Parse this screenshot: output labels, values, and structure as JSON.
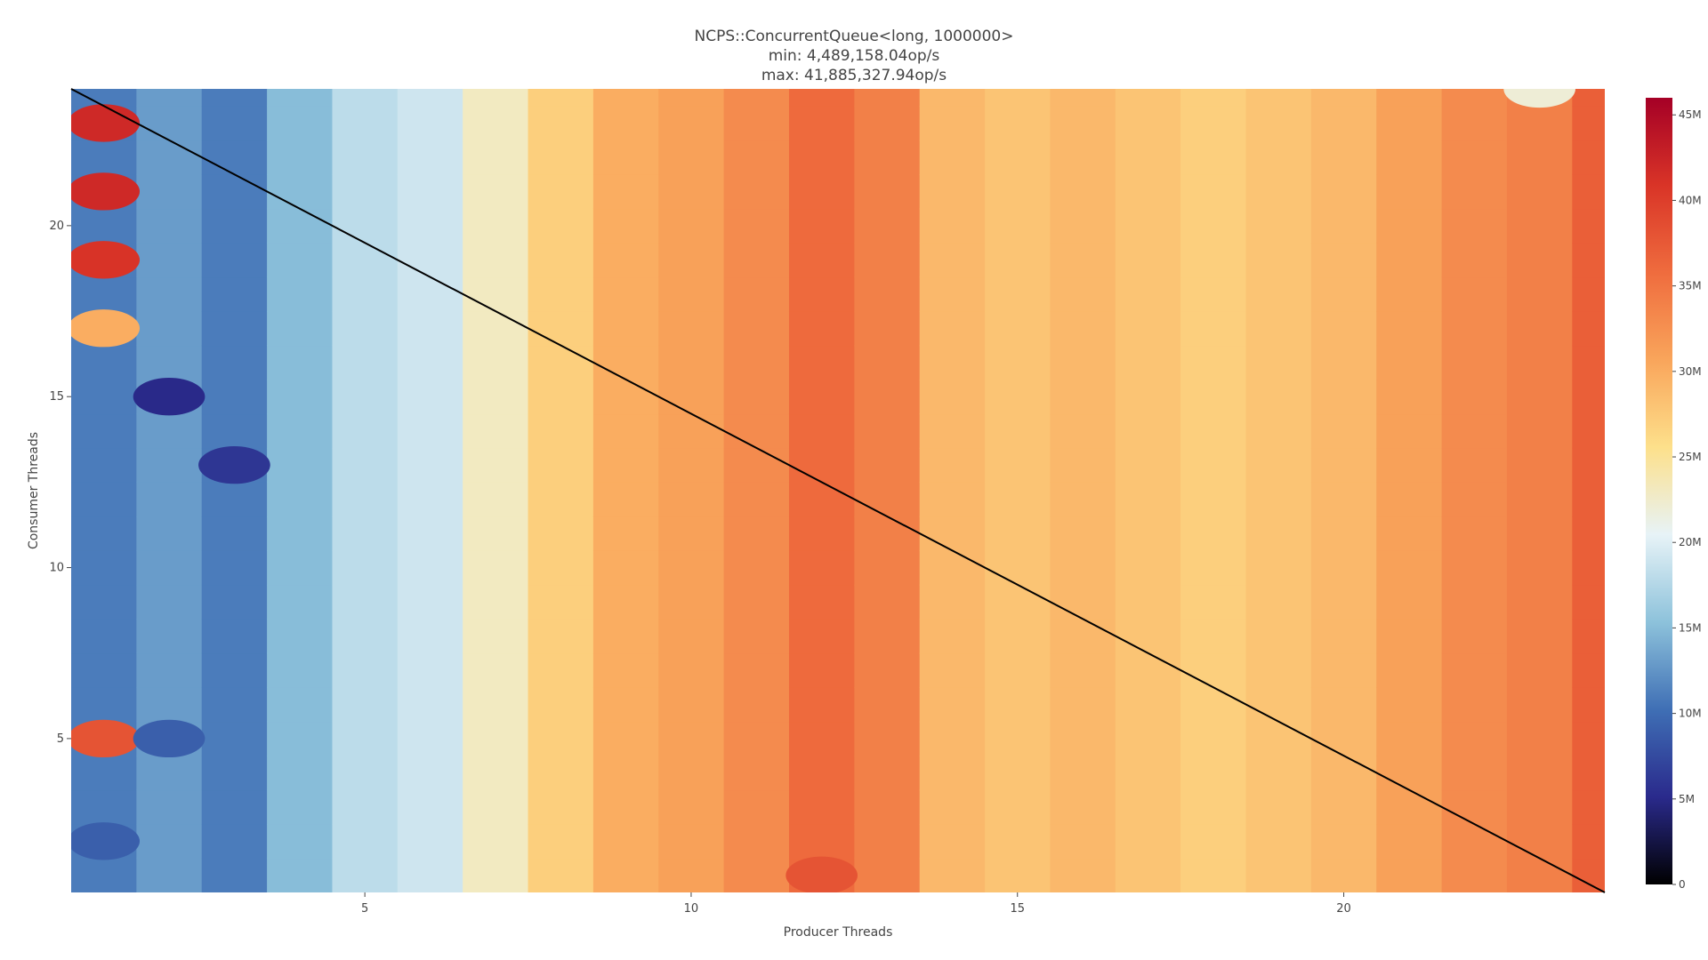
{
  "chart_data": {
    "type": "heatmap",
    "title_lines": [
      "NCPS::ConcurrentQueue<long, 1000000>",
      "min: 4,489,158.04op/s",
      "max: 41,885,327.94op/s"
    ],
    "xlabel": "Producer Threads",
    "ylabel": "Consumer Threads",
    "xlim": [
      0.5,
      24
    ],
    "ylim": [
      0.5,
      24
    ],
    "x_ticks": [
      5,
      10,
      15,
      20
    ],
    "y_ticks": [
      5,
      10,
      15,
      20
    ],
    "colorbar": {
      "min": 0,
      "max": 46000000,
      "ticks": [
        {
          "value": 0,
          "label": "0"
        },
        {
          "value": 5000000,
          "label": "5M"
        },
        {
          "value": 10000000,
          "label": "10M"
        },
        {
          "value": 15000000,
          "label": "15M"
        },
        {
          "value": 20000000,
          "label": "20M"
        },
        {
          "value": 25000000,
          "label": "25M"
        },
        {
          "value": 30000000,
          "label": "30M"
        },
        {
          "value": 35000000,
          "label": "35M"
        },
        {
          "value": 40000000,
          "label": "40M"
        },
        {
          "value": 45000000,
          "label": "45M"
        }
      ],
      "colorscale": [
        "#000000",
        "#2a2a8c",
        "#3f6fb5",
        "#8dc2db",
        "#e7f3f7",
        "#fde08b",
        "#f9a55b",
        "#ef6c3e",
        "#d93427",
        "#a50026"
      ]
    },
    "diagonal_line": {
      "from": [
        0.5,
        24
      ],
      "to": [
        24,
        0.5
      ],
      "color": "#000000"
    },
    "column_profile_M": [
      {
        "x": 1,
        "v": 11
      },
      {
        "x": 2,
        "v": 13
      },
      {
        "x": 3,
        "v": 11
      },
      {
        "x": 4,
        "v": 15
      },
      {
        "x": 5,
        "v": 18
      },
      {
        "x": 6,
        "v": 19
      },
      {
        "x": 7,
        "v": 23
      },
      {
        "x": 8,
        "v": 27
      },
      {
        "x": 9,
        "v": 30
      },
      {
        "x": 10,
        "v": 31
      },
      {
        "x": 11,
        "v": 33
      },
      {
        "x": 12,
        "v": 36
      },
      {
        "x": 13,
        "v": 34
      },
      {
        "x": 14,
        "v": 29
      },
      {
        "x": 15,
        "v": 28
      },
      {
        "x": 16,
        "v": 29
      },
      {
        "x": 17,
        "v": 28
      },
      {
        "x": 18,
        "v": 27
      },
      {
        "x": 19,
        "v": 28
      },
      {
        "x": 20,
        "v": 29
      },
      {
        "x": 21,
        "v": 31
      },
      {
        "x": 22,
        "v": 33
      },
      {
        "x": 23,
        "v": 34
      },
      {
        "x": 24,
        "v": 37
      }
    ],
    "hotspots_M": [
      {
        "x": 1,
        "y": 23,
        "v": 42
      },
      {
        "x": 1,
        "y": 21,
        "v": 42
      },
      {
        "x": 1,
        "y": 19,
        "v": 41
      },
      {
        "x": 1,
        "y": 17,
        "v": 30
      },
      {
        "x": 1,
        "y": 5,
        "v": 38
      },
      {
        "x": 2,
        "y": 15,
        "v": 5
      },
      {
        "x": 3,
        "y": 13,
        "v": 6
      },
      {
        "x": 2,
        "y": 5,
        "v": 9
      },
      {
        "x": 1,
        "y": 2,
        "v": 9
      },
      {
        "x": 12,
        "y": 1,
        "v": 38
      },
      {
        "x": 23,
        "y": 24,
        "v": 22
      }
    ]
  }
}
